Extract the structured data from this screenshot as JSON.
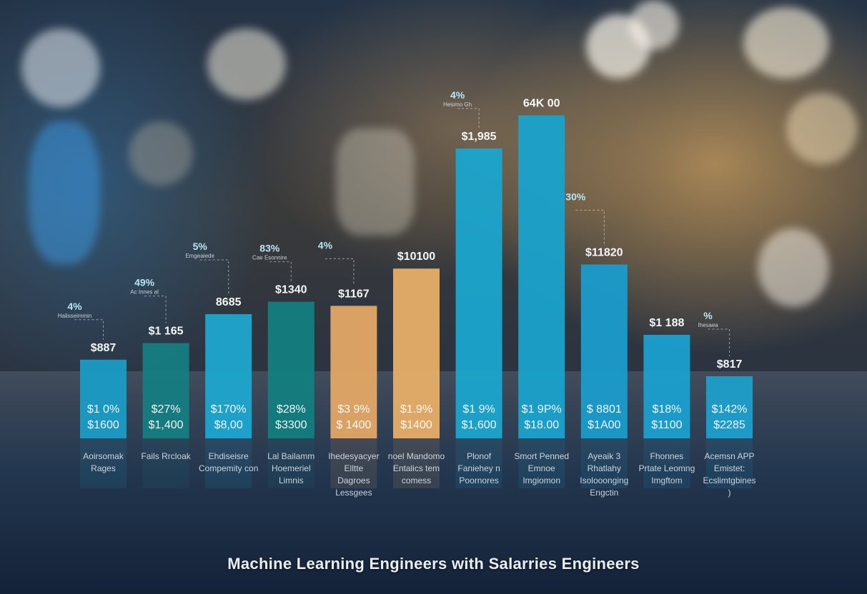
{
  "chart_data": {
    "type": "bar",
    "title": "Machine Learning Engineers with Salarries Engineers",
    "xlabel": "",
    "ylabel": "",
    "ylim": [
      0,
      100
    ],
    "grid": false,
    "categories": [
      "Aoirsomak Rages",
      "Fails Rrcloak",
      "Ehdiseisre Compemity con",
      "Lal Bailamm Hoemeriel Limnis",
      "Ihedesyacyer Elltte Dagroes Lessgees",
      "noel Mandomo Entalics tem comess",
      "Plonof Faniehey n Poornores",
      "Smort Penned Emnoe Imgiomon",
      "Ayeaik 3 Rhatlahy Isolooonging Engctin",
      "Fhonnes Prtate Leomng Imgftom",
      "Acemsn APP Emistet: Ecslimtgbines )"
    ],
    "values": [
      19,
      23,
      30,
      33,
      32,
      41,
      70,
      78,
      42,
      25,
      15
    ],
    "series": [
      {
        "values": [
          19,
          23,
          30,
          33,
          32,
          41,
          70,
          78,
          42,
          25,
          15
        ],
        "colors": [
          "#1a9cc6",
          "#157d82",
          "#1ea7cf",
          "#137e80",
          "#e3a865",
          "#e7ae67",
          "#1ba5cd",
          "#19a2cc",
          "#1a9ccc",
          "#1ba0cf",
          "#1c9fcb"
        ]
      }
    ],
    "top_labels": [
      "$887",
      "$1 165",
      "8685",
      "$1340",
      "$1167",
      "$10100",
      "$1,985",
      "64K 00",
      "$11820",
      "$1 188",
      "$817"
    ],
    "inner_line1": [
      "$1 0%",
      "$27%",
      "$170%",
      "$28%",
      "$3 9%",
      "$1.9%",
      "$1 9%",
      "$1 9P%",
      "$ 8801",
      "$18%",
      "$142%"
    ],
    "inner_line2": [
      "$1600",
      "$1,400",
      "$8,00",
      "$3300",
      "$ 1400",
      "$1400",
      "$1,600",
      "$18.00",
      "$1A00",
      "$1100",
      "$2285"
    ],
    "annotations": [
      {
        "pct": "4%",
        "sub": "Halisseimmin",
        "bar": 0
      },
      {
        "pct": "49%",
        "sub": "Ac Innes al",
        "bar": 1
      },
      {
        "pct": "5%",
        "sub": "Emgeaiede",
        "bar": 2
      },
      {
        "pct": "83%",
        "sub": "Cae Esonnire",
        "bar": 3
      },
      {
        "pct": "4%",
        "sub": "",
        "bar": 4
      },
      {
        "pct": "4%",
        "sub": "Hesimo Gh",
        "bar": 6
      },
      {
        "pct": "30%",
        "sub": "",
        "bar": 8
      },
      {
        "pct": "%",
        "sub": "Ihesaea",
        "bar": 10
      }
    ]
  }
}
